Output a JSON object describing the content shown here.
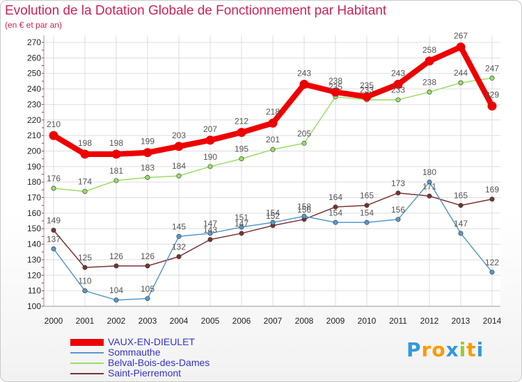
{
  "title": "Evolution de la Dotation Globale de Fonctionnement par Habitant",
  "subtitle": "(en € et par an)",
  "chart_data": {
    "type": "line",
    "title": "Evolution de la Dotation Globale de Fonctionnement par Habitant",
    "subtitle": "(en € et par an)",
    "xlabel": "",
    "ylabel": "",
    "categories": [
      "2000",
      "2001",
      "2002",
      "2003",
      "2004",
      "2005",
      "2006",
      "2007",
      "2008",
      "2009",
      "2010",
      "2011",
      "2012",
      "2013",
      "2014"
    ],
    "ylim": [
      100,
      270
    ],
    "yticks": [
      100,
      110,
      120,
      130,
      140,
      150,
      160,
      170,
      180,
      190,
      200,
      210,
      220,
      230,
      240,
      250,
      260,
      270
    ],
    "grid": true,
    "legend_position": "bottom-left",
    "series": [
      {
        "name": "VAUX-EN-DIEULET",
        "color": "#ee0000",
        "values": [
          210,
          198,
          198,
          199,
          203,
          207,
          212,
          218,
          243,
          238,
          235,
          243,
          258,
          267,
          229
        ]
      },
      {
        "name": "Sommauthe",
        "color": "#5599cc",
        "values": [
          137,
          110,
          104,
          105,
          145,
          147,
          151,
          154,
          158,
          154,
          154,
          156,
          180,
          147,
          122
        ]
      },
      {
        "name": "Belval-Bois-des-Dames",
        "color": "#99dd66",
        "values": [
          176,
          174,
          181,
          183,
          184,
          190,
          195,
          201,
          205,
          235,
          233,
          233,
          238,
          244,
          247
        ]
      },
      {
        "name": "Saint-Pierremont",
        "color": "#773333",
        "values": [
          149,
          125,
          126,
          126,
          132,
          143,
          147,
          152,
          156,
          164,
          165,
          173,
          171,
          165,
          169
        ]
      }
    ]
  },
  "logo": {
    "letters": [
      "P",
      "r",
      "o",
      "x",
      "i",
      "t",
      "i"
    ],
    "colors": [
      "#3399dd",
      "#ff9900",
      "#ff9900",
      "#3399dd",
      "#99cc33",
      "#ff9900",
      "#3399dd"
    ]
  }
}
